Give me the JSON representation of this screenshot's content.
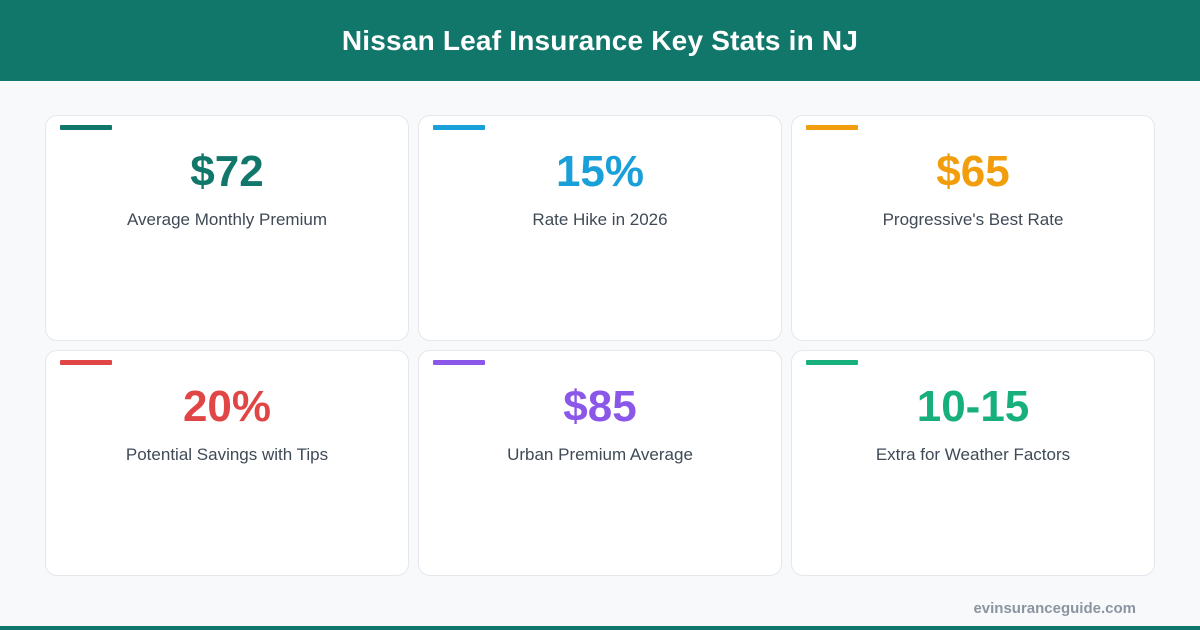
{
  "colors": {
    "brand": "#11776b",
    "card_border": "#e4e7eb",
    "label_text": "#3f4a56",
    "footer_text": "#8b95a1"
  },
  "header": {
    "title": "Nissan Leaf Insurance Key Stats in NJ"
  },
  "stats": [
    {
      "value": "$72",
      "label": "Average Monthly Premium",
      "color": "#11776b"
    },
    {
      "value": "15%",
      "label": "Rate Hike in 2026",
      "color": "#1aa0d8"
    },
    {
      "value": "$65",
      "label": "Progressive's Best Rate",
      "color": "#f29e0c"
    },
    {
      "value": "20%",
      "label": "Potential Savings with Tips",
      "color": "#e04646"
    },
    {
      "value": "$85",
      "label": "Urban Premium Average",
      "color": "#8b57e8"
    },
    {
      "value": "10-15",
      "label": "Extra for Weather Factors",
      "color": "#17b07d"
    }
  ],
  "footer": {
    "site": "evinsuranceguide.com"
  }
}
